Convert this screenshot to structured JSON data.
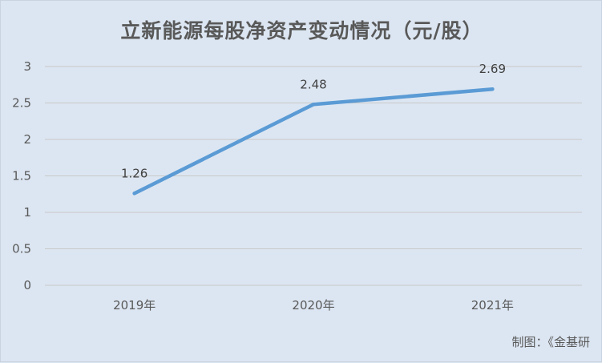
{
  "chart_data": {
    "type": "line",
    "title": "立新能源每股净资产变动情况（元/股）",
    "categories": [
      "2019年",
      "2020年",
      "2021年"
    ],
    "series": [
      {
        "values": [
          1.26,
          2.48,
          2.69
        ],
        "color": "#5b9bd5"
      }
    ],
    "data_labels": [
      "1.26",
      "2.48",
      "2.69"
    ],
    "y_ticks": [
      "0",
      "0.5",
      "1",
      "1.5",
      "2",
      "2.5",
      "3"
    ],
    "ylim": [
      0,
      3
    ],
    "grid": true,
    "legend": "none"
  },
  "footer": {
    "source": "制图：《金基研"
  },
  "colors": {
    "background": "#dce6f2",
    "grid": "#c8c8c8",
    "text": "#595959"
  }
}
